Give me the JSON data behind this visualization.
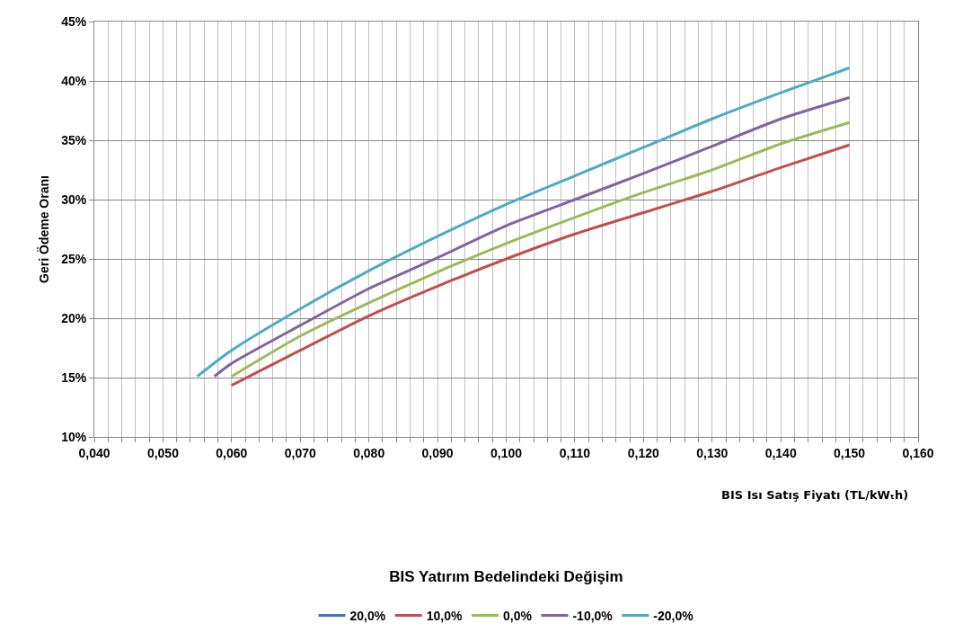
{
  "chart_data": {
    "type": "line",
    "xlabel": "BIS Isı Satış Fiyatı (TL/kWₜh)",
    "ylabel": "Geri Ödeme Oranı",
    "legend_title": "BIS Yatırım Bedelindeki Değişim",
    "legend": "bottom",
    "grid": true,
    "marker": "none",
    "line_style": "solid",
    "xlim": [
      0.04,
      0.16
    ],
    "ylim": [
      10,
      45
    ],
    "xticks": [
      {
        "value": 0.04,
        "label": "0,040"
      },
      {
        "value": 0.042,
        "label": null
      },
      {
        "value": 0.044,
        "label": null
      },
      {
        "value": 0.046,
        "label": null
      },
      {
        "value": 0.048,
        "label": null
      },
      {
        "value": 0.05,
        "label": "0,050"
      },
      {
        "value": 0.052,
        "label": null
      },
      {
        "value": 0.054,
        "label": null
      },
      {
        "value": 0.056,
        "label": null
      },
      {
        "value": 0.058,
        "label": null
      },
      {
        "value": 0.06,
        "label": "0,060"
      },
      {
        "value": 0.062,
        "label": null
      },
      {
        "value": 0.064,
        "label": null
      },
      {
        "value": 0.066,
        "label": null
      },
      {
        "value": 0.068,
        "label": null
      },
      {
        "value": 0.07,
        "label": "0,070"
      },
      {
        "value": 0.072,
        "label": null
      },
      {
        "value": 0.074,
        "label": null
      },
      {
        "value": 0.076,
        "label": null
      },
      {
        "value": 0.078,
        "label": null
      },
      {
        "value": 0.08,
        "label": "0,080"
      },
      {
        "value": 0.082,
        "label": null
      },
      {
        "value": 0.084,
        "label": null
      },
      {
        "value": 0.086,
        "label": null
      },
      {
        "value": 0.088,
        "label": null
      },
      {
        "value": 0.09,
        "label": "0,090"
      },
      {
        "value": 0.092,
        "label": null
      },
      {
        "value": 0.094,
        "label": null
      },
      {
        "value": 0.096,
        "label": null
      },
      {
        "value": 0.098,
        "label": null
      },
      {
        "value": 0.1,
        "label": "0,100"
      },
      {
        "value": 0.102,
        "label": null
      },
      {
        "value": 0.104,
        "label": null
      },
      {
        "value": 0.106,
        "label": null
      },
      {
        "value": 0.108,
        "label": null
      },
      {
        "value": 0.11,
        "label": "0,110"
      },
      {
        "value": 0.112,
        "label": null
      },
      {
        "value": 0.114,
        "label": null
      },
      {
        "value": 0.116,
        "label": null
      },
      {
        "value": 0.118,
        "label": null
      },
      {
        "value": 0.12,
        "label": "0,120"
      },
      {
        "value": 0.122,
        "label": null
      },
      {
        "value": 0.124,
        "label": null
      },
      {
        "value": 0.126,
        "label": null
      },
      {
        "value": 0.128,
        "label": null
      },
      {
        "value": 0.13,
        "label": "0,130"
      },
      {
        "value": 0.132,
        "label": null
      },
      {
        "value": 0.134,
        "label": null
      },
      {
        "value": 0.136,
        "label": null
      },
      {
        "value": 0.138,
        "label": null
      },
      {
        "value": 0.14,
        "label": "0,140"
      },
      {
        "value": 0.142,
        "label": null
      },
      {
        "value": 0.144,
        "label": null
      },
      {
        "value": 0.146,
        "label": null
      },
      {
        "value": 0.148,
        "label": null
      },
      {
        "value": 0.15,
        "label": "0,150"
      },
      {
        "value": 0.152,
        "label": null
      },
      {
        "value": 0.154,
        "label": null
      },
      {
        "value": 0.156,
        "label": null
      },
      {
        "value": 0.158,
        "label": null
      },
      {
        "value": 0.16,
        "label": "0,160"
      }
    ],
    "yticks": [
      {
        "value": 10,
        "label": "10%"
      },
      {
        "value": 15,
        "label": "15%"
      },
      {
        "value": 20,
        "label": "20%"
      },
      {
        "value": 25,
        "label": "25%"
      },
      {
        "value": 30,
        "label": "30%"
      },
      {
        "value": 35,
        "label": "35%"
      },
      {
        "value": 40,
        "label": "40%"
      },
      {
        "value": 45,
        "label": "45%"
      }
    ],
    "series": [
      {
        "name": "20,0%",
        "color": "#4472c4",
        "values": [
          null
        ]
      },
      {
        "name": "10,0%",
        "color": "#c0504d",
        "x": [
          0.06,
          0.07,
          0.08,
          0.09,
          0.1,
          0.11,
          0.12,
          0.13,
          0.14,
          0.15
        ],
        "values": [
          14.35,
          17.3,
          20.2,
          22.7,
          25.0,
          27.1,
          28.9,
          30.7,
          32.7,
          34.6
        ]
      },
      {
        "name": "0,0%",
        "color": "#9bbb59",
        "x": [
          0.06,
          0.07,
          0.08,
          0.09,
          0.1,
          0.11,
          0.12,
          0.13,
          0.14,
          0.15
        ],
        "values": [
          15.1,
          18.5,
          21.3,
          23.9,
          26.3,
          28.5,
          30.6,
          32.5,
          34.7,
          36.5
        ]
      },
      {
        "name": "-10,0%",
        "color": "#8064a2",
        "x": [
          0.0575,
          0.06,
          0.07,
          0.08,
          0.09,
          0.1,
          0.11,
          0.12,
          0.13,
          0.14,
          0.15
        ],
        "values": [
          15.1,
          16.2,
          19.4,
          22.5,
          25.1,
          27.8,
          30.0,
          32.2,
          34.5,
          36.8,
          38.6
        ]
      },
      {
        "name": "-20,0%",
        "color": "#4bacc6",
        "x": [
          0.055,
          0.06,
          0.07,
          0.08,
          0.09,
          0.1,
          0.11,
          0.12,
          0.13,
          0.14,
          0.15
        ],
        "values": [
          15.1,
          17.3,
          20.8,
          24.0,
          26.9,
          29.6,
          32.0,
          34.4,
          36.8,
          39.0,
          41.1
        ]
      }
    ]
  }
}
